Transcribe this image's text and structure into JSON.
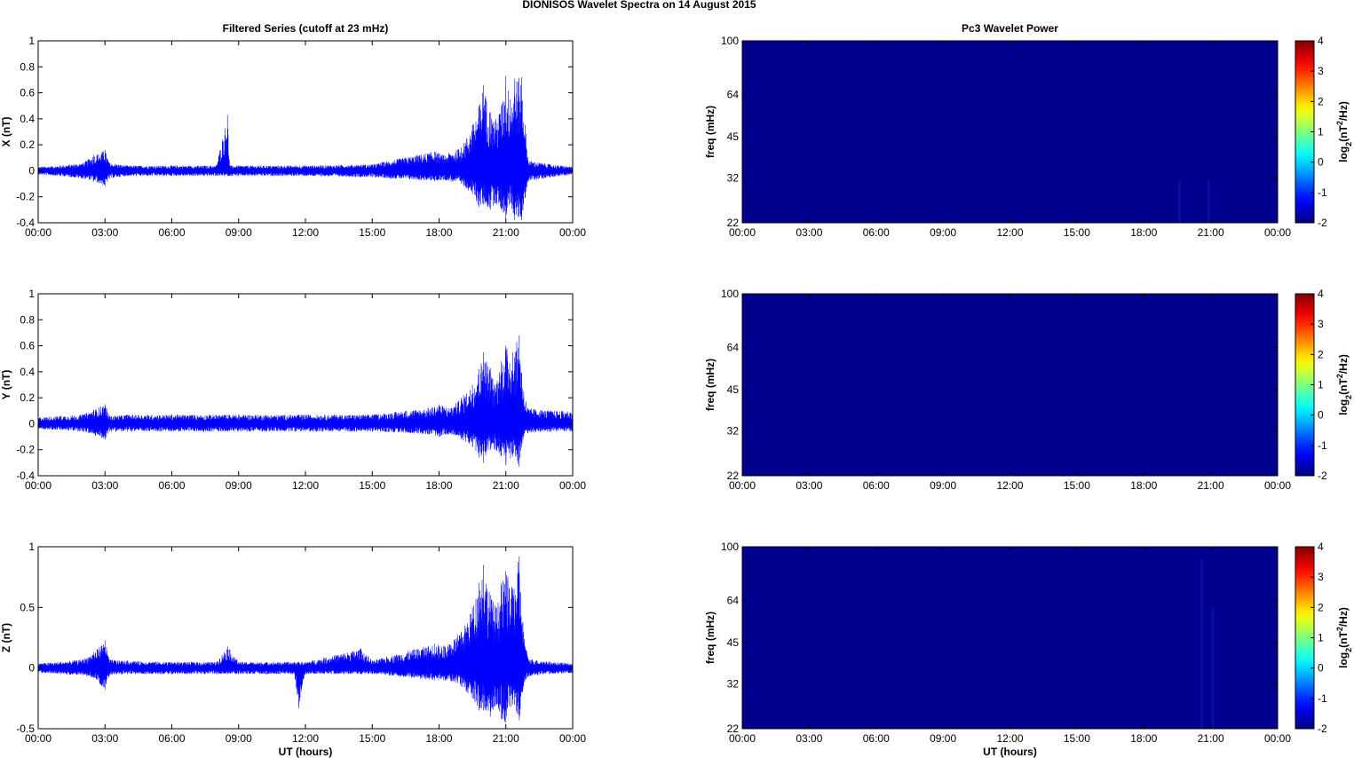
{
  "figure_title": "DIONISOS Wavelet Spectra on 14 August    2015",
  "colors": {
    "trace": "#0000ff",
    "spectrum_background": "#00008f",
    "axis": "#000000"
  },
  "chart_data": [
    {
      "id": "x-series",
      "type": "line",
      "title": "Filtered Series (cutoff at 23 mHz)",
      "xlabel": "",
      "ylabel": "X (nT)",
      "xticks": [
        "00:00",
        "03:00",
        "06:00",
        "09:00",
        "12:00",
        "15:00",
        "18:00",
        "21:00",
        "00:00"
      ],
      "yticks": [
        "1",
        "0.8",
        "0.6",
        "0.4",
        "0.2",
        "0",
        "-0.2",
        "-0.4"
      ],
      "ylim": [
        -0.4,
        1
      ],
      "xlim_hours": [
        0,
        24
      ],
      "series": [
        {
          "x_hours": [
            0,
            1,
            2,
            2.5,
            3,
            3.2,
            4,
            6,
            8,
            8.5,
            8.6,
            9,
            12,
            15,
            17.8,
            18.2,
            19,
            19.5,
            19.8,
            20,
            20.3,
            20.5,
            20.8,
            21,
            21.2,
            21.4,
            21.7,
            22,
            23,
            24
          ],
          "y_max": [
            0.03,
            0.04,
            0.06,
            0.12,
            0.16,
            0.06,
            0.04,
            0.04,
            0.04,
            0.43,
            0.04,
            0.04,
            0.04,
            0.05,
            0.15,
            0.12,
            0.18,
            0.35,
            0.5,
            0.66,
            0.45,
            0.38,
            0.5,
            0.73,
            0.55,
            0.71,
            0.72,
            0.08,
            0.05,
            0.03
          ],
          "y_min": [
            -0.03,
            -0.04,
            -0.06,
            -0.08,
            -0.12,
            -0.06,
            -0.04,
            -0.04,
            -0.04,
            -0.04,
            -0.04,
            -0.04,
            -0.04,
            -0.05,
            -0.08,
            -0.07,
            -0.1,
            -0.18,
            -0.28,
            -0.26,
            -0.3,
            -0.25,
            -0.3,
            -0.37,
            -0.25,
            -0.38,
            -0.38,
            -0.08,
            -0.05,
            -0.03
          ]
        }
      ]
    },
    {
      "id": "y-series",
      "type": "line",
      "title": "",
      "xlabel": "",
      "ylabel": "Y (nT)",
      "xticks": [
        "00:00",
        "03:00",
        "06:00",
        "09:00",
        "12:00",
        "15:00",
        "18:00",
        "21:00",
        "00:00"
      ],
      "yticks": [
        "1",
        "0.8",
        "0.6",
        "0.4",
        "0.2",
        "0",
        "-0.2",
        "-0.4"
      ],
      "ylim": [
        -0.4,
        1
      ],
      "xlim_hours": [
        0,
        24
      ],
      "series": [
        {
          "x_hours": [
            0,
            1,
            2,
            3,
            3.2,
            4,
            6,
            9,
            12,
            15,
            16.5,
            17.5,
            18,
            18.5,
            19,
            19.5,
            19.8,
            20,
            20.3,
            20.5,
            20.8,
            21,
            21.3,
            21.6,
            21.8,
            22,
            23,
            24
          ],
          "y_max": [
            0.05,
            0.06,
            0.07,
            0.15,
            0.06,
            0.07,
            0.07,
            0.07,
            0.07,
            0.07,
            0.1,
            0.12,
            0.15,
            0.12,
            0.2,
            0.3,
            0.42,
            0.55,
            0.43,
            0.3,
            0.48,
            0.6,
            0.55,
            0.68,
            0.25,
            0.12,
            0.1,
            0.1
          ],
          "y_min": [
            -0.04,
            -0.05,
            -0.06,
            -0.12,
            -0.06,
            -0.06,
            -0.06,
            -0.06,
            -0.06,
            -0.06,
            -0.07,
            -0.08,
            -0.1,
            -0.08,
            -0.12,
            -0.18,
            -0.26,
            -0.3,
            -0.2,
            -0.2,
            -0.25,
            -0.32,
            -0.25,
            -0.33,
            -0.1,
            -0.07,
            -0.06,
            -0.06
          ]
        }
      ]
    },
    {
      "id": "z-series",
      "type": "line",
      "title": "",
      "xlabel": "UT (hours)",
      "ylabel": "Z (nT)",
      "xticks": [
        "00:00",
        "03:00",
        "06:00",
        "09:00",
        "12:00",
        "15:00",
        "18:00",
        "21:00",
        "00:00"
      ],
      "yticks": [
        "1",
        "0.5",
        "0",
        "-0.5"
      ],
      "ylim": [
        -0.5,
        1
      ],
      "xlim_hours": [
        0,
        24
      ],
      "series": [
        {
          "x_hours": [
            0,
            1,
            2,
            2.5,
            3,
            3.2,
            4,
            6,
            8,
            8.5,
            9,
            11.5,
            11.7,
            12,
            14.5,
            15,
            17.8,
            18.2,
            19,
            19.5,
            19.8,
            20,
            20.3,
            20.6,
            20.8,
            21,
            21.3,
            21.6,
            21.8,
            22,
            23,
            24
          ],
          "y_max": [
            0.04,
            0.05,
            0.07,
            0.13,
            0.23,
            0.07,
            0.06,
            0.05,
            0.05,
            0.18,
            0.05,
            0.05,
            0.05,
            0.05,
            0.16,
            0.06,
            0.2,
            0.18,
            0.3,
            0.5,
            0.7,
            0.85,
            0.6,
            0.5,
            0.7,
            0.8,
            0.65,
            0.92,
            0.3,
            0.08,
            0.05,
            0.04
          ],
          "y_min": [
            -0.04,
            -0.05,
            -0.06,
            -0.08,
            -0.18,
            -0.06,
            -0.05,
            -0.05,
            -0.05,
            -0.05,
            -0.05,
            -0.05,
            -0.33,
            -0.05,
            -0.05,
            -0.05,
            -0.1,
            -0.1,
            -0.15,
            -0.25,
            -0.35,
            -0.35,
            -0.4,
            -0.3,
            -0.42,
            -0.45,
            -0.3,
            -0.43,
            -0.15,
            -0.07,
            -0.05,
            -0.04
          ]
        }
      ]
    },
    {
      "id": "x-wavelet",
      "type": "heatmap",
      "title": "Pc3 Wavelet Power",
      "xlabel": "",
      "ylabel": "freq (mHz)",
      "xticks": [
        "00:00",
        "03:00",
        "06:00",
        "09:00",
        "12:00",
        "15:00",
        "18:00",
        "21:00",
        "00:00"
      ],
      "yticks": [
        "100",
        "64",
        "45",
        "32",
        "22"
      ],
      "ylim": [
        22,
        100
      ],
      "yscale": "log",
      "colorbar": {
        "label_main": "log",
        "label_sub": "2",
        "label_unit": "(nT",
        "label_sup": "2",
        "label_tail": "/Hz)",
        "ticks": [
          "4",
          "3",
          "2",
          "1",
          "0",
          "-1",
          "-2"
        ],
        "range": [
          -2,
          4
        ]
      },
      "value": -2,
      "faint_streaks": [
        {
          "hour": 19.6,
          "fmax": 31
        },
        {
          "hour": 20.9,
          "fmax": 31
        }
      ]
    },
    {
      "id": "y-wavelet",
      "type": "heatmap",
      "title": "",
      "xlabel": "",
      "ylabel": "freq (mHz)",
      "xticks": [
        "00:00",
        "03:00",
        "06:00",
        "09:00",
        "12:00",
        "15:00",
        "18:00",
        "21:00",
        "00:00"
      ],
      "yticks": [
        "100",
        "64",
        "45",
        "32",
        "22"
      ],
      "ylim": [
        22,
        100
      ],
      "yscale": "log",
      "colorbar": {
        "label_main": "log",
        "label_sub": "2",
        "label_unit": "(nT",
        "label_sup": "2",
        "label_tail": "/Hz)",
        "ticks": [
          "4",
          "3",
          "2",
          "1",
          "0",
          "-1",
          "-2"
        ],
        "range": [
          -2,
          4
        ]
      },
      "value": -2,
      "faint_streaks": []
    },
    {
      "id": "z-wavelet",
      "type": "heatmap",
      "title": "",
      "xlabel": "UT (hours)",
      "ylabel": "freq (mHz)",
      "xticks": [
        "00:00",
        "03:00",
        "06:00",
        "09:00",
        "12:00",
        "15:00",
        "18:00",
        "21:00",
        "00:00"
      ],
      "yticks": [
        "100",
        "64",
        "45",
        "32",
        "22"
      ],
      "ylim": [
        22,
        100
      ],
      "yscale": "log",
      "colorbar": {
        "label_main": "log",
        "label_sub": "2",
        "label_unit": "(nT",
        "label_sup": "2",
        "label_tail": "/Hz)",
        "ticks": [
          "4",
          "3",
          "2",
          "1",
          "0",
          "-1",
          "-2"
        ],
        "range": [
          -2,
          4
        ]
      },
      "value": -2,
      "faint_streaks": [
        {
          "hour": 20.6,
          "fmax": 90
        },
        {
          "hour": 21.1,
          "fmax": 60
        }
      ]
    }
  ]
}
